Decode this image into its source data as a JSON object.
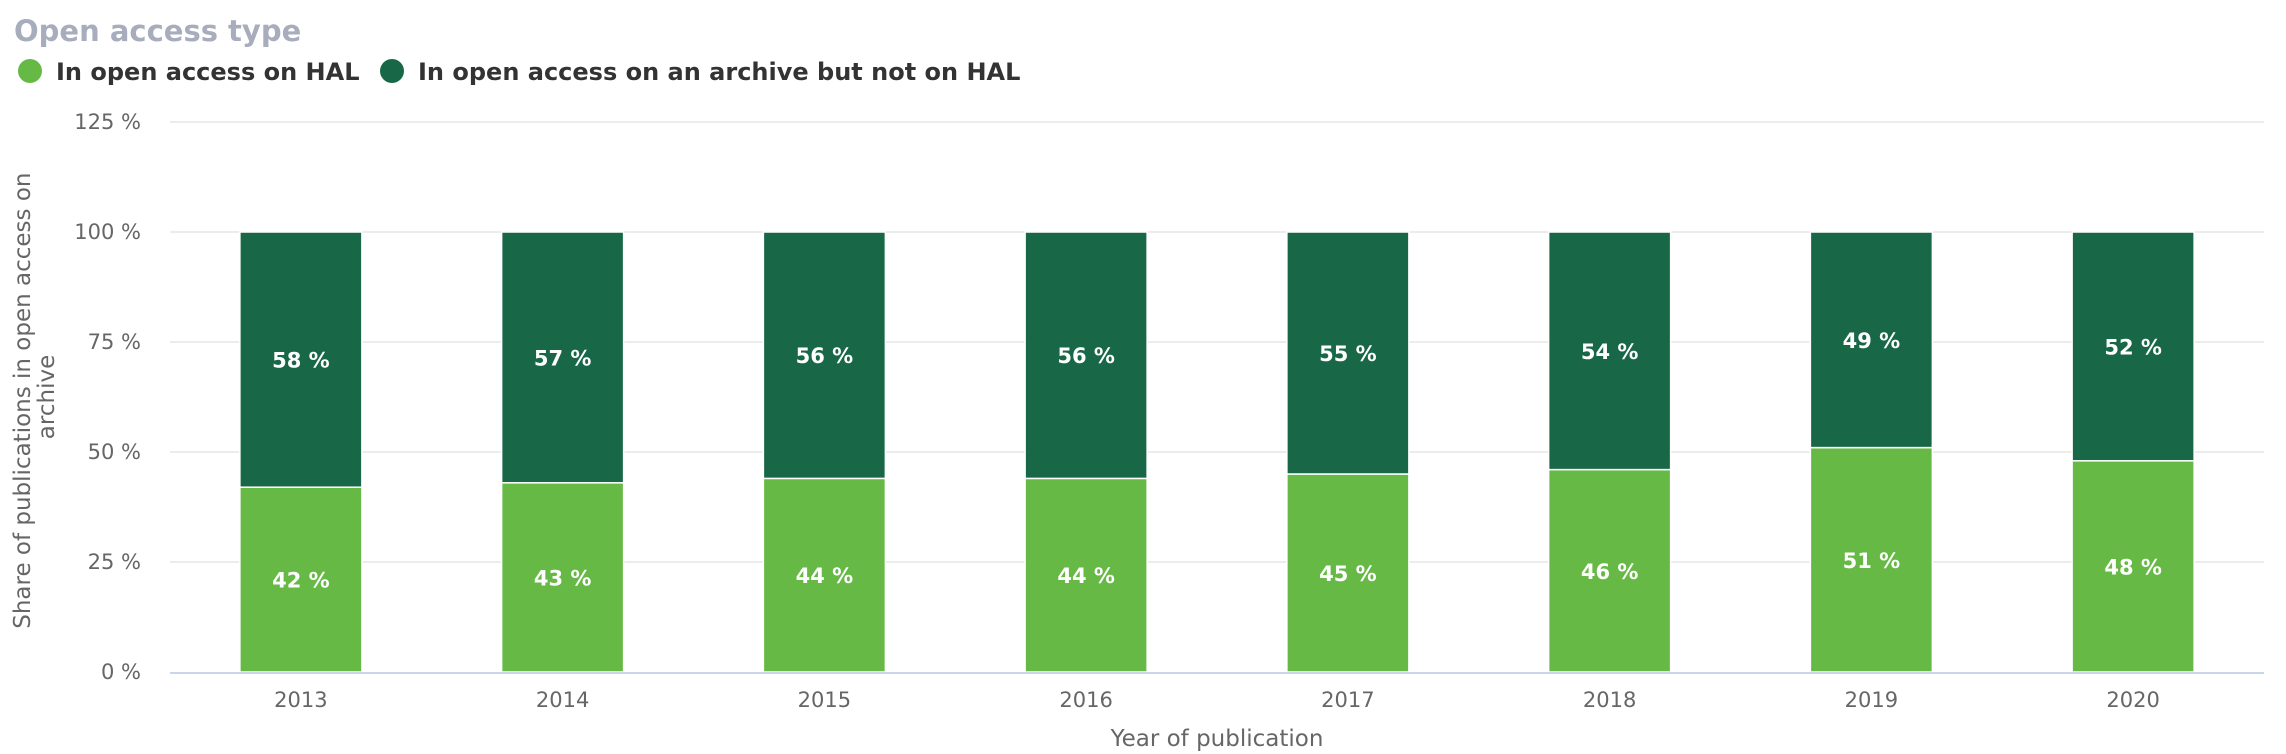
{
  "chart_data": {
    "type": "bar",
    "stacked": true,
    "title": "Open access type",
    "xlabel": "Year of publication",
    "ylabel": "Share of publications in open access on archive",
    "ylim": [
      0,
      125
    ],
    "yticks": [
      0,
      25,
      50,
      75,
      100,
      125
    ],
    "ytick_labels": [
      "0 %",
      "25 %",
      "50 %",
      "75 %",
      "100 %",
      "125 %"
    ],
    "grid": true,
    "legend_position": "top-left",
    "categories": [
      "2013",
      "2014",
      "2015",
      "2016",
      "2017",
      "2018",
      "2019",
      "2020"
    ],
    "series": [
      {
        "name": "In open access on HAL",
        "color": "#67b945",
        "values": [
          42,
          43,
          44,
          44,
          45,
          46,
          51,
          48
        ],
        "labels": [
          "42 %",
          "43 %",
          "44 %",
          "44 %",
          "45 %",
          "46 %",
          "51 %",
          "48 %"
        ]
      },
      {
        "name": "In open access on an archive but not on HAL",
        "color": "#186848",
        "values": [
          58,
          57,
          56,
          56,
          55,
          54,
          49,
          52
        ],
        "labels": [
          "58 %",
          "57 %",
          "56 %",
          "56 %",
          "55 %",
          "54 %",
          "49 %",
          "52 %"
        ]
      }
    ]
  }
}
